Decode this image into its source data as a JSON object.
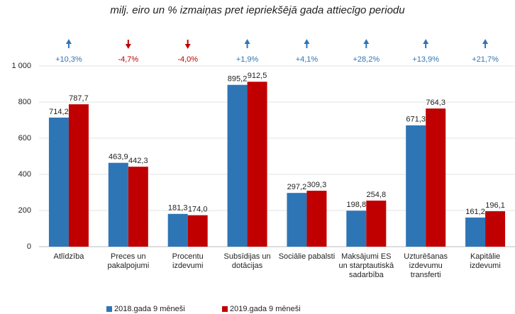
{
  "chart_data": {
    "type": "bar",
    "subtitle": "milj. eiro un % izmaiņas pret iepriekšējā gada attiecīgo periodu",
    "categories": [
      "Atlīdzība",
      "Preces un pakalpojumi",
      "Procentu izdevumi",
      "Subsīdijas un dotācijas",
      "Sociālie pabalsti",
      "Maksājumi ES un starptautiskā sadarbība",
      "Uzturēšanas izdevumu transferti",
      "Kapitālie izdevumi"
    ],
    "series": [
      {
        "name": "2018.gada 9 mēneši",
        "color": "#2e75b6",
        "values": [
          714.2,
          463.9,
          181.3,
          895.2,
          297.2,
          198.8,
          671.3,
          161.2
        ],
        "value_labels": [
          "714,2",
          "463,9",
          "181,3",
          "895,2",
          "297,2",
          "198,8",
          "671,3",
          "161,2"
        ]
      },
      {
        "name": "2019.gada 9 mēneši",
        "color": "#c00000",
        "values": [
          787.7,
          442.3,
          174.0,
          912.5,
          309.3,
          254.8,
          764.3,
          196.1
        ],
        "value_labels": [
          "787,7",
          "442,3",
          "174,0",
          "912,5",
          "309,3",
          "254,8",
          "764,3",
          "196,1"
        ]
      }
    ],
    "changes": [
      10.3,
      -4.7,
      -4.0,
      1.9,
      4.1,
      28.2,
      13.9,
      21.7
    ],
    "change_labels": [
      "+10,3%",
      "-4,7%",
      "-4,0%",
      "+1,9%",
      "+4,1%",
      "+28,2%",
      "+13,9%",
      "+21,7%"
    ],
    "up_color": "#2e75b6",
    "down_color": "#c00000",
    "ylim": [
      0,
      1000
    ],
    "yticks": [
      0,
      200,
      400,
      600,
      800,
      {
        "value": 1000,
        "label": "1 000"
      }
    ],
    "grid": true,
    "legend": "bottom"
  }
}
